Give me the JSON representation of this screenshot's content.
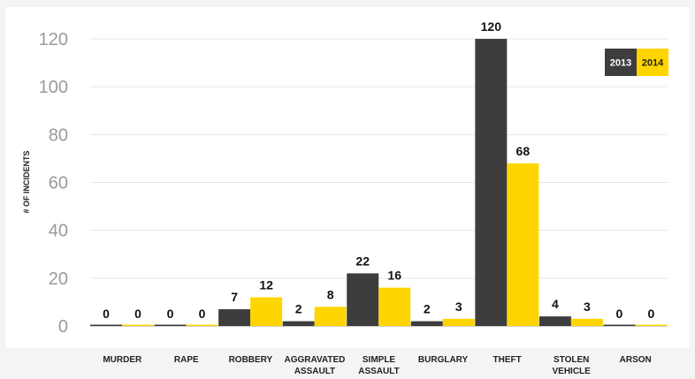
{
  "chart_data": {
    "type": "bar",
    "title": "",
    "xlabel": "",
    "ylabel": "# OF INCIDENTS",
    "ylim": [
      0,
      120
    ],
    "yticks": [
      0,
      20,
      40,
      60,
      80,
      100,
      120
    ],
    "grid": true,
    "legend_position": "top-right",
    "categories": [
      [
        "MURDER"
      ],
      [
        "RAPE"
      ],
      [
        "ROBBERY"
      ],
      [
        "AGGRAVATED",
        "ASSAULT"
      ],
      [
        "SIMPLE",
        "ASSAULT"
      ],
      [
        "BURGLARY"
      ],
      [
        "THEFT"
      ],
      [
        "STOLEN",
        "VEHICLE"
      ],
      [
        "ARSON"
      ]
    ],
    "series": [
      {
        "name": "2013",
        "color": "#3d3d3d",
        "values": [
          0,
          0,
          7,
          2,
          22,
          2,
          120,
          4,
          0
        ]
      },
      {
        "name": "2014",
        "color": "#ffd500",
        "values": [
          0,
          0,
          12,
          8,
          16,
          3,
          68,
          3,
          0
        ]
      }
    ]
  }
}
